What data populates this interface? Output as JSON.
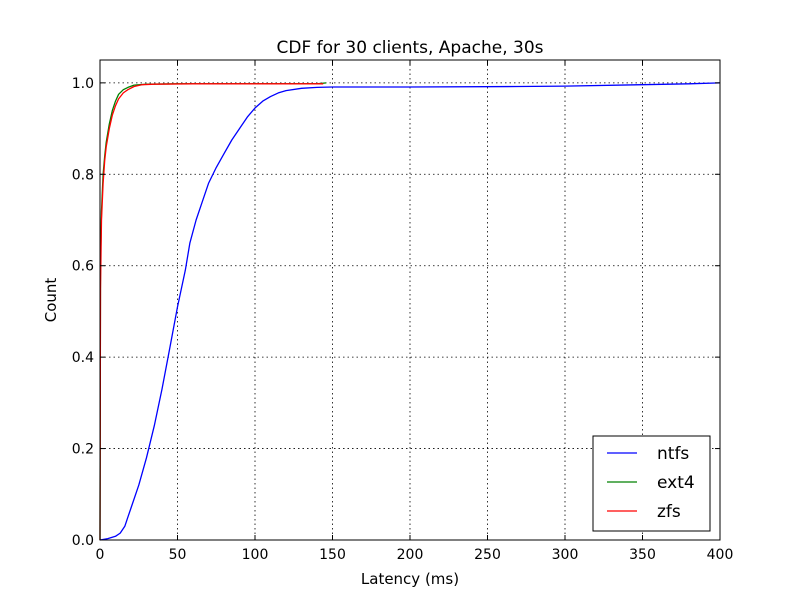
{
  "chart_data": {
    "type": "line",
    "title": "CDF for 30 clients, Apache, 30s",
    "xlabel": "Latency (ms)",
    "ylabel": "Count",
    "xlim": [
      0,
      400
    ],
    "ylim": [
      0,
      1.05
    ],
    "xticks": [
      0,
      50,
      100,
      150,
      200,
      250,
      300,
      350,
      400
    ],
    "yticks": [
      0.0,
      0.2,
      0.4,
      0.6,
      0.8,
      1.0
    ],
    "xtick_labels": [
      "0",
      "50",
      "100",
      "150",
      "200",
      "250",
      "300",
      "350",
      "400"
    ],
    "ytick_labels": [
      "0.0",
      "0.2",
      "0.4",
      "0.6",
      "0.8",
      "1.0"
    ],
    "grid": true,
    "legend_position": "lower-right",
    "series": [
      {
        "name": "ntfs",
        "color": "#0000ff",
        "points": [
          [
            0,
            0
          ],
          [
            5,
            0.003
          ],
          [
            10,
            0.008
          ],
          [
            13,
            0.015
          ],
          [
            16,
            0.03
          ],
          [
            18,
            0.05
          ],
          [
            20,
            0.07
          ],
          [
            25,
            0.12
          ],
          [
            30,
            0.18
          ],
          [
            35,
            0.25
          ],
          [
            40,
            0.33
          ],
          [
            45,
            0.42
          ],
          [
            50,
            0.51
          ],
          [
            55,
            0.59
          ],
          [
            58,
            0.65
          ],
          [
            62,
            0.7
          ],
          [
            66,
            0.74
          ],
          [
            70,
            0.78
          ],
          [
            75,
            0.815
          ],
          [
            80,
            0.845
          ],
          [
            85,
            0.875
          ],
          [
            90,
            0.9
          ],
          [
            95,
            0.925
          ],
          [
            100,
            0.945
          ],
          [
            105,
            0.96
          ],
          [
            110,
            0.97
          ],
          [
            115,
            0.978
          ],
          [
            120,
            0.983
          ],
          [
            130,
            0.988
          ],
          [
            140,
            0.99
          ],
          [
            150,
            0.991
          ],
          [
            200,
            0.991
          ],
          [
            270,
            0.992
          ],
          [
            300,
            0.993
          ],
          [
            350,
            0.996
          ],
          [
            380,
            0.998
          ],
          [
            400,
            1.0
          ]
        ]
      },
      {
        "name": "ext4",
        "color": "#008000",
        "points": [
          [
            0,
            0
          ],
          [
            0.3,
            0.6
          ],
          [
            1,
            0.72
          ],
          [
            2,
            0.8
          ],
          [
            3,
            0.84
          ],
          [
            4,
            0.87
          ],
          [
            6,
            0.91
          ],
          [
            8,
            0.94
          ],
          [
            10,
            0.96
          ],
          [
            12,
            0.975
          ],
          [
            15,
            0.985
          ],
          [
            18,
            0.99
          ],
          [
            22,
            0.995
          ],
          [
            30,
            0.997
          ],
          [
            50,
            0.998
          ],
          [
            100,
            0.998
          ],
          [
            140,
            0.998
          ],
          [
            146,
            1.0
          ]
        ]
      },
      {
        "name": "zfs",
        "color": "#ff0000",
        "points": [
          [
            0,
            0
          ],
          [
            0.3,
            0.55
          ],
          [
            1,
            0.7
          ],
          [
            2,
            0.78
          ],
          [
            3,
            0.83
          ],
          [
            4,
            0.86
          ],
          [
            6,
            0.9
          ],
          [
            8,
            0.93
          ],
          [
            10,
            0.95
          ],
          [
            12,
            0.965
          ],
          [
            15,
            0.978
          ],
          [
            18,
            0.985
          ],
          [
            22,
            0.992
          ],
          [
            27,
            0.996
          ],
          [
            35,
            0.997
          ],
          [
            60,
            0.998
          ],
          [
            100,
            0.998
          ],
          [
            144,
            0.998
          ]
        ]
      }
    ]
  }
}
